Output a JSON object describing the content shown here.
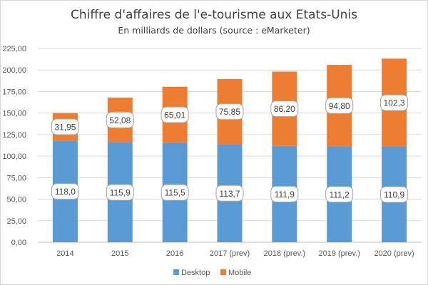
{
  "chart_data": {
    "type": "bar",
    "stacked": true,
    "title": "Chiffre d'affaires de l'e-tourisme aux Etats-Unis",
    "subtitle": "En milliards de dollars (source : eMarketer)",
    "xlabel": "",
    "ylabel": "",
    "ylim": [
      0,
      225
    ],
    "ytick_step": 25,
    "ytick_labels": [
      "0,00",
      "25,00",
      "50,00",
      "75,00",
      "100,00",
      "125,00",
      "150,00",
      "175,00",
      "200,00",
      "225,00"
    ],
    "grid": true,
    "legend_position": "bottom",
    "categories": [
      "2014",
      "2015",
      "2016",
      "2017 (prev)",
      "2018 (prev.)",
      "2019 (prev.)",
      "2020 (prev)"
    ],
    "series": [
      {
        "name": "Desktop",
        "color": "#5b9bd5",
        "values": [
          118.0,
          115.9,
          115.5,
          113.7,
          111.9,
          111.2,
          110.9
        ],
        "labels": [
          "118,0",
          "115,9",
          "115,5",
          "113,7",
          "111,9",
          "111,2",
          "110,9"
        ]
      },
      {
        "name": "Mobile",
        "color": "#ed7d31",
        "values": [
          31.95,
          52.08,
          65.01,
          75.85,
          86.2,
          94.8,
          102.3
        ],
        "labels": [
          "31,95",
          "52,08",
          "65,01",
          "75,85",
          "86,20",
          "94,80",
          "102,3"
        ]
      }
    ]
  }
}
